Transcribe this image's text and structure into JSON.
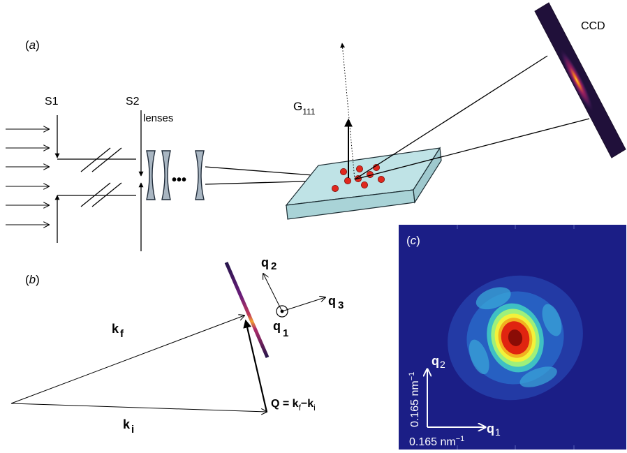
{
  "panel_a": {
    "label_open": "(",
    "label_letter": "a",
    "label_close": ")",
    "s1": "S1",
    "s2": "S2",
    "lenses": "lenses",
    "dots": "•••",
    "g_base": "G",
    "g_sub": "111",
    "ccd": "CCD"
  },
  "panel_b": {
    "label_open": "(",
    "label_letter": "b",
    "label_close": ")",
    "kf_base": "k",
    "kf_sub": "f",
    "ki_base": "k",
    "ki_sub": "i",
    "q_eq_prefix": "Q = k",
    "q_eq_sub1": "f",
    "q_eq_mid": "−k",
    "q_eq_sub2": "i",
    "q1_base": "q",
    "q1_sub": "1",
    "q2_base": "q",
    "q2_sub": "2",
    "q3_base": "q",
    "q3_sub": "3"
  },
  "panel_c": {
    "label_open": "(",
    "label_letter": "c",
    "label_close": ")",
    "v_scale": "0.165 nm",
    "v_scale_sup": "−1",
    "v_axis_base": "q",
    "v_axis_sub": "2",
    "h_scale": "0.165 nm",
    "h_scale_sup": "−1",
    "h_axis_base": "q",
    "h_axis_sub": "1"
  },
  "colors": {
    "line": "#000000",
    "lens_fill": "#a9b6c2",
    "slab_top": "#bfe3e6",
    "slab_side": "#9fc9ce",
    "particle": "#e0281e",
    "map_bg": "#1b1e86",
    "ccd_bg": "#20103a"
  }
}
